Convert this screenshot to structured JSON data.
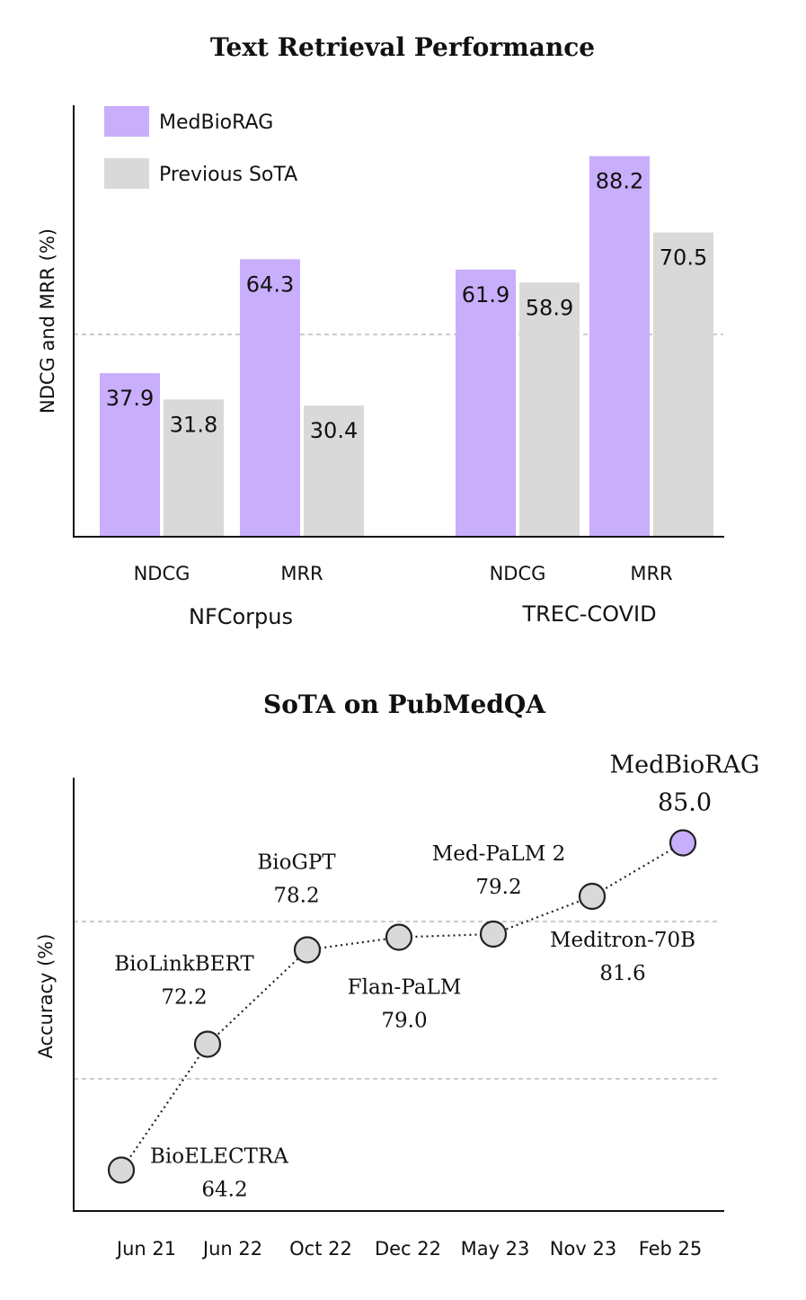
{
  "colors": {
    "medbiorag": "#c9aefc",
    "previous_sota": "#d9d9d9",
    "grid": "#999999",
    "marker_edge": "#222222"
  },
  "chart_data": [
    {
      "type": "bar",
      "title": "Text Retrieval Performance",
      "ylabel": "NDCG and MRR (%)",
      "ylim": [
        0,
        100
      ],
      "grid": "dashed horizontal line at 50",
      "legend_placement": "top-left",
      "groups": [
        {
          "name": "NFCorpus",
          "categories": [
            "NDCG",
            "MRR"
          ]
        },
        {
          "name": "TREC-COVID",
          "categories": [
            "NDCG",
            "MRR"
          ]
        }
      ],
      "series": [
        {
          "name": "MedBioRAG",
          "color": "#c9aefc",
          "values": [
            37.9,
            64.3,
            61.9,
            88.2
          ]
        },
        {
          "name": "Previous SoTA",
          "color": "#d9d9d9",
          "values": [
            31.8,
            30.4,
            58.9,
            70.5
          ]
        }
      ]
    },
    {
      "type": "line",
      "title": "SoTA on PubMedQA",
      "ylabel": "Accuracy (%)",
      "ylim": [
        60,
        88
      ],
      "grid": "dashed horizontal lines at 70 and 80",
      "x": [
        "Jun 21",
        "Jun 22",
        "Oct 22",
        "Dec 22",
        "May 23",
        "Nov 23",
        "Feb 25"
      ],
      "points": [
        {
          "x": "Jun 21",
          "y": 64.2,
          "label": "BioELECTRA",
          "value_label": "64.2",
          "highlight": false
        },
        {
          "x": "Jun 22",
          "y": 72.2,
          "label": "BioLinkBERT",
          "value_label": "72.2",
          "highlight": false
        },
        {
          "x": "Oct 22",
          "y": 78.2,
          "label": "BioGPT",
          "value_label": "78.2",
          "highlight": false
        },
        {
          "x": "Dec 22",
          "y": 79.0,
          "label": "Flan-PaLM",
          "value_label": "79.0",
          "highlight": false
        },
        {
          "x": "May 23",
          "y": 79.2,
          "label": "Med-PaLM 2",
          "value_label": "79.2",
          "highlight": false
        },
        {
          "x": "Nov 23",
          "y": 81.6,
          "label": "Meditron-70B",
          "value_label": "81.6",
          "highlight": false
        },
        {
          "x": "Feb 25",
          "y": 85.0,
          "label": "MedBioRAG",
          "value_label": "85.0",
          "highlight": true
        }
      ]
    }
  ]
}
